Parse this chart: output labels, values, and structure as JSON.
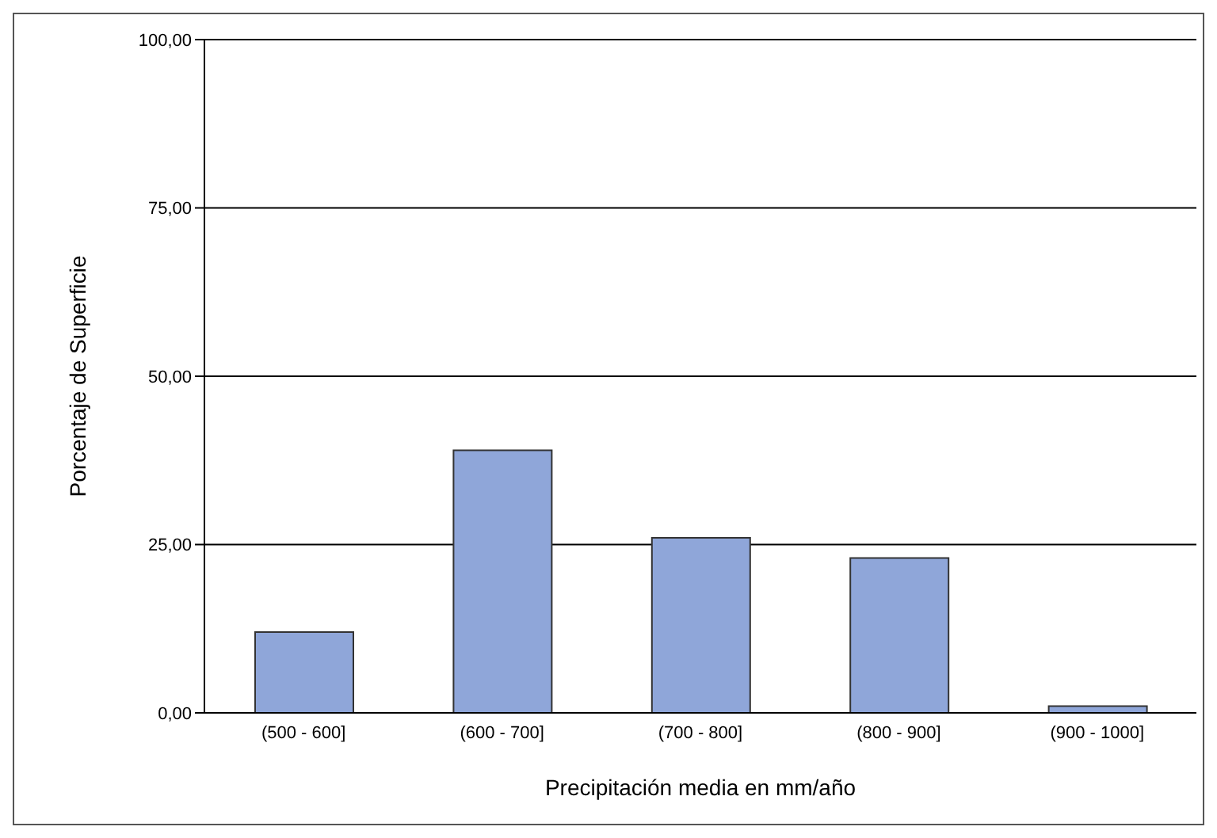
{
  "chart_data": {
    "type": "bar",
    "xlabel": "Precipitación media en mm/año",
    "ylabel": "Porcentaje de Superficie",
    "categories": [
      "(500 - 600]",
      "(600 - 700]",
      "(700 - 800]",
      "(800 - 900]",
      "(900 - 1000]"
    ],
    "values": [
      12,
      39,
      26,
      23,
      1
    ],
    "color": "#8fa6d9",
    "ylim": [
      0,
      100
    ],
    "yticks": [
      {
        "value": 0,
        "label": "0,00"
      },
      {
        "value": 25,
        "label": "25,00"
      },
      {
        "value": 50,
        "label": "50,00"
      },
      {
        "value": 75,
        "label": "75,00"
      },
      {
        "value": 100,
        "label": "100,00"
      }
    ],
    "grid": "y",
    "legend": false
  }
}
